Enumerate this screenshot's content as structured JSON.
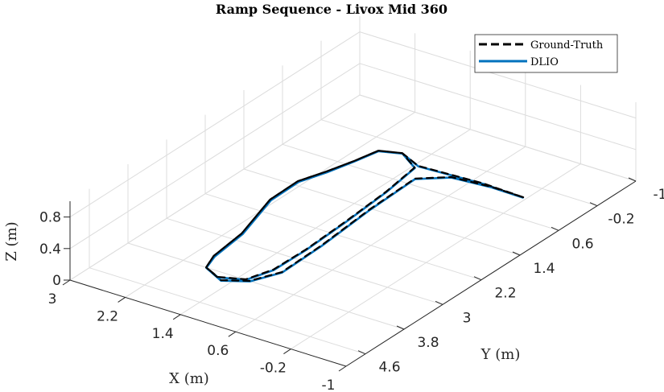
{
  "chart_data": {
    "type": "line3d",
    "title": "Ramp Sequence - Livox Mid 360",
    "xlabel": "X (m)",
    "ylabel": "Y (m)",
    "zlabel": "Z (m)",
    "xlim": [
      -1,
      3
    ],
    "ylim": [
      -1,
      5
    ],
    "zlim": [
      0,
      1
    ],
    "xticks": [
      "3",
      "2.2",
      "1.4",
      "0.6",
      "-0.2",
      "-1"
    ],
    "yticks": [
      "-1",
      "-0.2",
      "0.6",
      "1.4",
      "2.2",
      "3",
      "3.8",
      "4.6"
    ],
    "zticks": [
      "0",
      "0.4",
      "0.8"
    ],
    "grid": true,
    "legend_position": "top-right",
    "series": [
      {
        "name": "Ground-Truth",
        "color": "#000000",
        "style": "dashed",
        "x": [
          -0.39,
          0.21,
          1.11,
          1.46,
          1.73,
          1.81,
          1.92,
          2.05,
          2.04,
          1.8,
          1.73,
          1.63,
          1.37,
          1.06,
          0.94,
          0.93,
          0.97,
          1.03,
          1.12,
          1.46,
          1.73,
          1.81,
          1.92,
          2.05,
          2.04,
          1.8,
          1.73,
          1.63,
          1.29,
          1.0,
          0.82,
          0.84,
          0.92,
          0.95,
          0.62,
          0.08,
          -0.39
        ],
        "y": [
          0.46,
          0.43,
          0.49,
          0.32,
          0.43,
          0.82,
          1.24,
          1.64,
          2.23,
          3.16,
          3.84,
          4.14,
          4.27,
          4.13,
          3.73,
          3.07,
          2.19,
          1.27,
          0.55,
          0.32,
          0.43,
          0.82,
          1.24,
          1.64,
          2.23,
          3.16,
          3.84,
          4.14,
          4.32,
          4.14,
          3.73,
          2.88,
          1.76,
          0.79,
          0.51,
          0.45,
          0.46
        ],
        "z": [
          0.2,
          0.2,
          0.2,
          0.2,
          0.2,
          0.2,
          0.2,
          0.2,
          0.2,
          0.2,
          0.2,
          0.2,
          0.2,
          0.2,
          0.2,
          0.2,
          0.2,
          0.2,
          0.2,
          0.2,
          0.2,
          0.2,
          0.2,
          0.2,
          0.2,
          0.2,
          0.2,
          0.2,
          0.2,
          0.2,
          0.2,
          0.2,
          0.2,
          0.2,
          0.2,
          0.2,
          0.2
        ]
      },
      {
        "name": "DLIO",
        "color": "#0072BD",
        "style": "solid",
        "x": [
          -0.39,
          0.2,
          1.1,
          1.45,
          1.72,
          1.8,
          1.9,
          2.03,
          2.02,
          1.78,
          1.71,
          1.62,
          1.36,
          1.05,
          0.93,
          0.92,
          0.96,
          1.02,
          1.11,
          1.45,
          1.72,
          1.8,
          1.91,
          2.04,
          2.03,
          1.79,
          1.72,
          1.62,
          1.28,
          0.99,
          0.81,
          0.83,
          0.91,
          0.94,
          0.61,
          0.07,
          -0.39
        ],
        "y": [
          0.47,
          0.44,
          0.5,
          0.33,
          0.44,
          0.83,
          1.25,
          1.65,
          2.24,
          3.17,
          3.85,
          4.15,
          4.28,
          4.14,
          3.74,
          3.08,
          2.2,
          1.28,
          0.56,
          0.33,
          0.44,
          0.83,
          1.25,
          1.65,
          2.24,
          3.17,
          3.85,
          4.15,
          4.33,
          4.15,
          3.74,
          2.89,
          1.77,
          0.8,
          0.52,
          0.46,
          0.47
        ],
        "z": [
          0.2,
          0.2,
          0.2,
          0.2,
          0.2,
          0.2,
          0.2,
          0.2,
          0.2,
          0.2,
          0.2,
          0.2,
          0.2,
          0.2,
          0.2,
          0.2,
          0.2,
          0.2,
          0.2,
          0.2,
          0.2,
          0.2,
          0.2,
          0.2,
          0.2,
          0.2,
          0.2,
          0.2,
          0.2,
          0.2,
          0.2,
          0.2,
          0.2,
          0.2,
          0.2,
          0.2,
          0.2
        ]
      }
    ]
  }
}
